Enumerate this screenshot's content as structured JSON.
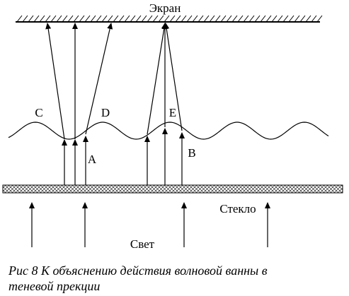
{
  "labels": {
    "screen": "Экран",
    "c": "C",
    "d": "D",
    "e": "E",
    "a": "A",
    "b": "B",
    "glass": "Стекло",
    "light": "Свет"
  },
  "caption": [
    "Рис 8 К объяснению действия волновой ванны в",
    "теневой прекции"
  ]
}
